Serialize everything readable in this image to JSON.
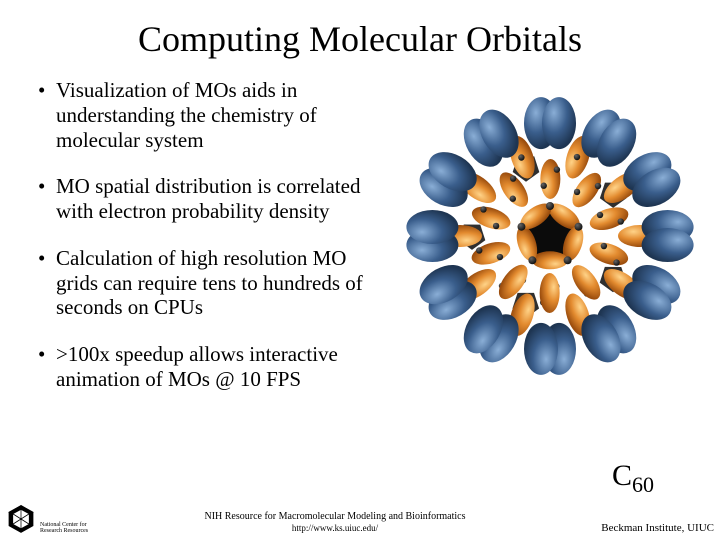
{
  "title": "Computing Molecular Orbitals",
  "bullets": [
    "Visualization of MOs aids in understanding the chemistry of molecular system",
    "MO spatial distribution is correlated with electron probability density",
    "Calculation of high resolution MO grids can require tens to hundreds of seconds on CPUs",
    ">100x speedup allows interactive animation of MOs @ 10 FPS"
  ],
  "molecule": {
    "label_main": "C",
    "label_sub": "60",
    "colors": {
      "lobe_outer": "#3a5e8c",
      "lobe_outer_hl": "#6a8fbf",
      "lobe_inner": "#e38b2f",
      "lobe_inner_hl": "#f4b05a",
      "bond": "#222222",
      "atom": "#333333",
      "bg": "#ffffff"
    }
  },
  "footer": {
    "left_caption": "NIH Resource for Macromolecular Modeling and Bioinformatics",
    "url": "http://www.ks.uiuc.edu/",
    "right": "Beckman Institute, UIUC",
    "logo_text": "National Center for Research Resources"
  }
}
